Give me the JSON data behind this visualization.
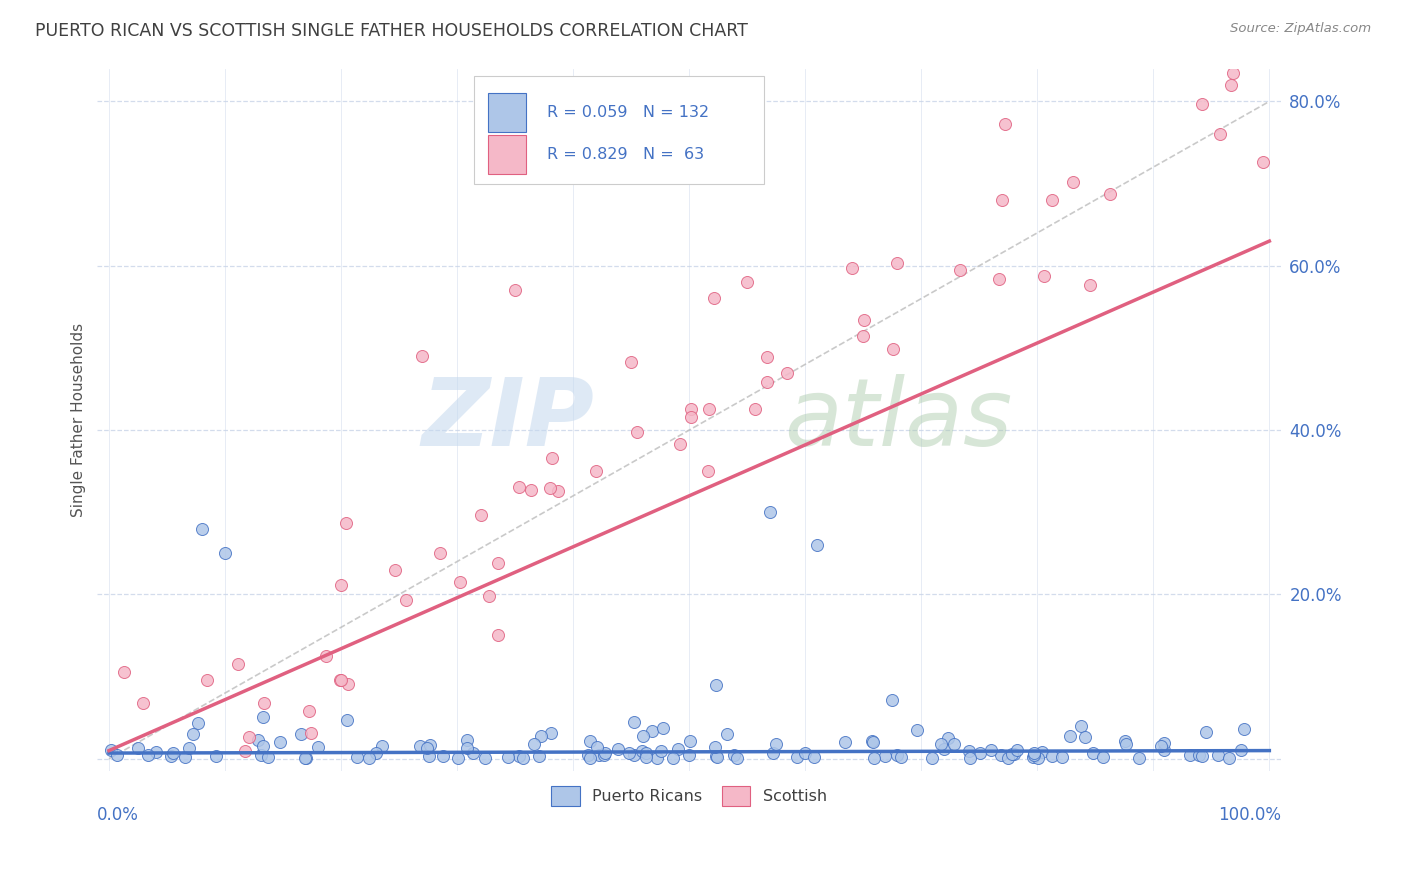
{
  "title": "PUERTO RICAN VS SCOTTISH SINGLE FATHER HOUSEHOLDS CORRELATION CHART",
  "source": "Source: ZipAtlas.com",
  "ylabel": "Single Father Households",
  "legend_r1": "R = 0.059",
  "legend_n1": "N = 132",
  "legend_r2": "R = 0.829",
  "legend_n2": "N =  63",
  "series1_color": "#aec6e8",
  "series2_color": "#f5b8c8",
  "line1_color": "#4472c4",
  "line2_color": "#e06080",
  "ref_line_color": "#b8b8b8",
  "background_color": "#ffffff",
  "grid_color": "#c8d4e8",
  "title_color": "#404040",
  "stats_color": "#4472c4",
  "source_color": "#888888",
  "legend_label1": "Puerto Ricans",
  "legend_label2": "Scottish",
  "watermark_zip_color": "#c4d8ee",
  "watermark_atlas_color": "#a8c8a8"
}
